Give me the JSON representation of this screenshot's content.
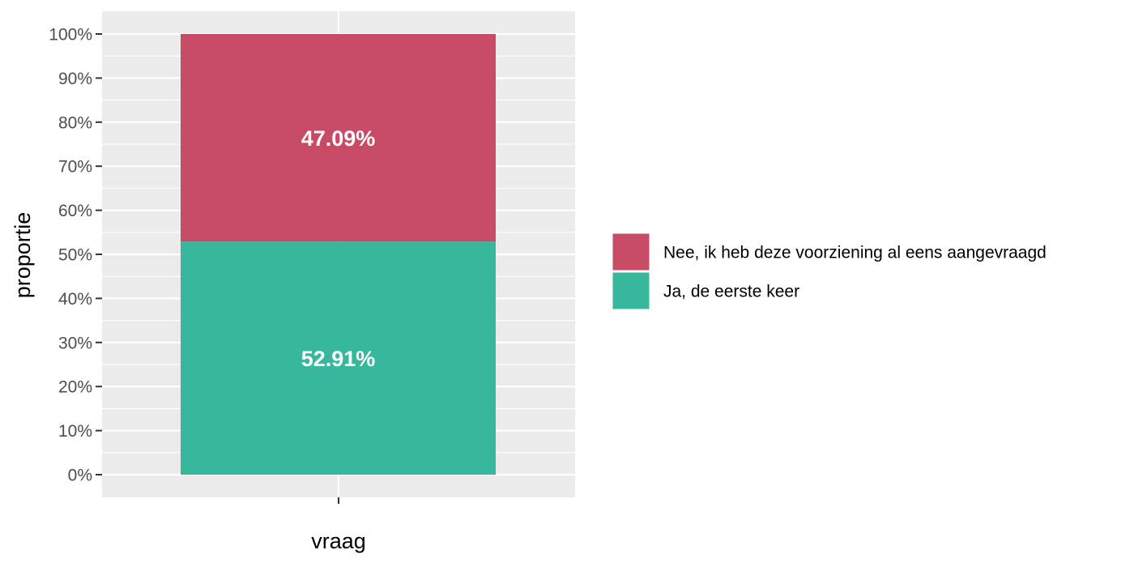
{
  "chart_data": {
    "type": "bar",
    "stacked": true,
    "categories": [
      ""
    ],
    "series": [
      {
        "name": "Ja, de eerste keer",
        "values": [
          52.91
        ],
        "label": "52.91%",
        "color": "#37b79b"
      },
      {
        "name": "Nee, ik heb deze voorziening al eens aangevraagd",
        "values": [
          47.09
        ],
        "label": "47.09%",
        "color": "#c84b66"
      }
    ],
    "xlabel": "vraag",
    "ylabel": "proportie",
    "ylim": [
      0,
      100
    ],
    "yticks": [
      0,
      10,
      20,
      30,
      40,
      50,
      60,
      70,
      80,
      90,
      100
    ],
    "ytick_labels": [
      "0%",
      "10%",
      "20%",
      "30%",
      "40%",
      "50%",
      "60%",
      "70%",
      "80%",
      "90%",
      "100%"
    ],
    "grid": true,
    "legend": {
      "position": "right",
      "entries": [
        {
          "label": "Nee, ik heb deze voorziening al eens aangevraagd",
          "color": "#c84b66"
        },
        {
          "label": "Ja, de eerste keer",
          "color": "#37b79b"
        }
      ]
    },
    "panel_background": "#ebebeb",
    "gridline_color": "#ffffff"
  }
}
